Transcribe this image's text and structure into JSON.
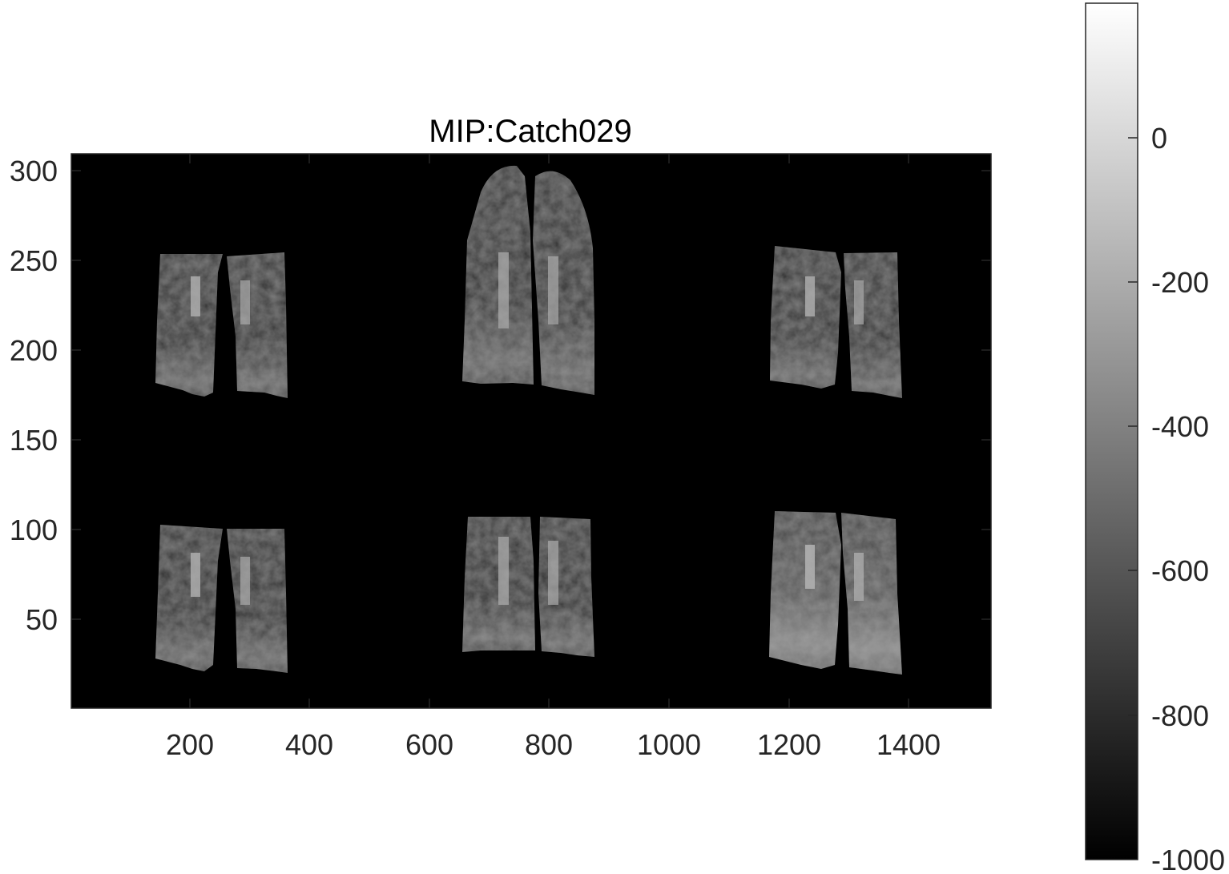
{
  "figure": {
    "title": "MIP:Catch029",
    "background": "#ffffff",
    "image_background": "#000000",
    "axis_color": "#262626"
  },
  "axes": {
    "x_ticks": [
      "200",
      "400",
      "600",
      "800",
      "1000",
      "1200",
      "1400"
    ],
    "y_ticks": [
      "300",
      "250",
      "200",
      "150",
      "100",
      "50"
    ]
  },
  "colorbar": {
    "colormap": "gray",
    "ticks": [
      "0",
      "-200",
      "-400",
      "-600",
      "-800",
      "-1000"
    ]
  },
  "image": {
    "description_icon": "lung-mip-panel-icon",
    "panels": [
      {
        "name": "top-left-lung-panel"
      },
      {
        "name": "top-center-lung-panel"
      },
      {
        "name": "top-right-lung-panel"
      },
      {
        "name": "bottom-left-lung-panel"
      },
      {
        "name": "bottom-center-lung-panel"
      },
      {
        "name": "bottom-right-lung-panel"
      }
    ]
  }
}
